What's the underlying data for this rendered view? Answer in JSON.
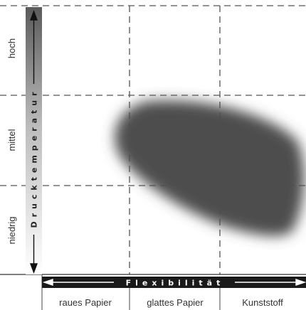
{
  "y_axis": {
    "title": "Drucktemperatur",
    "levels": [
      "hoch",
      "mittel",
      "niedrig"
    ]
  },
  "x_axis": {
    "title": "Flexibilität",
    "categories": [
      "raues Papier",
      "glattes Papier",
      "Kunststoff"
    ]
  },
  "colors": {
    "region": "#4d4d4d",
    "axis_bar": "#1a1a1a",
    "grid": "#555555"
  }
}
